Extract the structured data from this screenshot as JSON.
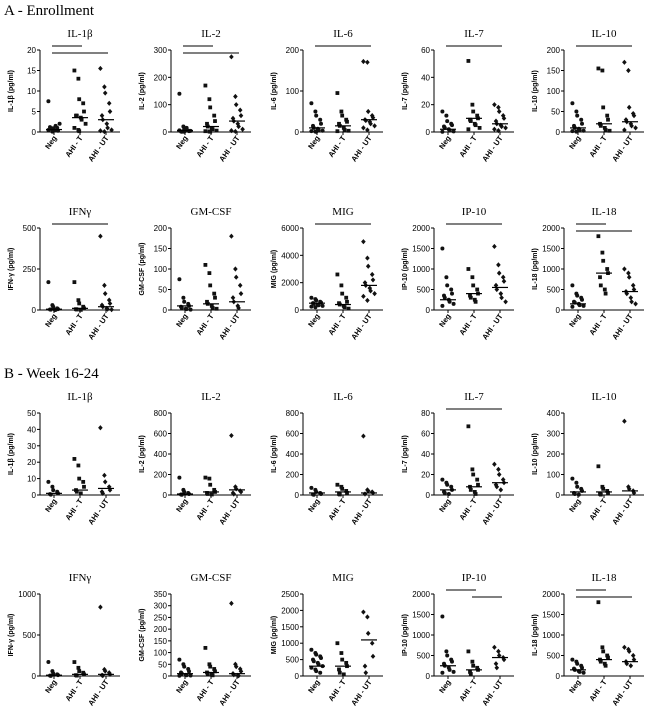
{
  "sections": [
    {
      "title": "A - Enrollment"
    },
    {
      "title": "B - Week 16-24"
    }
  ],
  "chart_data": [
    {
      "type": "scatter",
      "section": 0,
      "title": "IL-1β",
      "ylabel": "IL-1β (pg/ml)",
      "categories": [
        "Neg",
        "AHI - T",
        "AHI - UT"
      ],
      "ylim": [
        0,
        20
      ],
      "yticks": [
        0,
        5,
        10,
        15,
        20
      ],
      "brackets": [
        [
          0,
          1
        ],
        [
          0,
          2
        ]
      ],
      "points": [
        [
          0.5,
          0.2,
          0.6,
          1,
          0.3,
          1.2,
          0.8,
          0.4,
          1.5,
          2,
          7.5,
          0.1,
          0.9
        ],
        [
          15,
          13,
          8,
          7,
          5,
          4,
          4,
          3.5,
          3,
          2,
          1,
          0.5,
          0.2
        ],
        [
          15.5,
          11,
          9.5,
          7,
          5,
          4,
          3,
          2,
          1,
          0.5,
          0.3,
          0.1
        ]
      ],
      "medians": [
        0.6,
        3.5,
        3
      ]
    },
    {
      "type": "scatter",
      "section": 0,
      "title": "IL-2",
      "ylabel": "IL-2 (pg/ml)",
      "categories": [
        "Neg",
        "AHI - T",
        "AHI - UT"
      ],
      "ylim": [
        0,
        300
      ],
      "yticks": [
        0,
        100,
        200,
        300
      ],
      "brackets": [
        [
          0,
          1
        ],
        [
          0,
          2
        ]
      ],
      "points": [
        [
          140,
          20,
          10,
          5,
          3,
          2,
          1,
          8,
          15,
          4,
          6,
          2,
          1
        ],
        [
          170,
          120,
          90,
          60,
          40,
          30,
          20,
          15,
          10,
          5,
          3,
          2,
          1
        ],
        [
          275,
          130,
          100,
          80,
          60,
          50,
          40,
          30,
          20,
          10,
          5,
          2
        ]
      ],
      "medians": [
        5,
        20,
        40
      ]
    },
    {
      "type": "scatter",
      "section": 0,
      "title": "IL-6",
      "ylabel": "IL-6 (pg/ml)",
      "categories": [
        "Neg",
        "AHI - T",
        "AHI - UT"
      ],
      "ylim": [
        0,
        200
      ],
      "yticks": [
        0,
        100,
        200
      ],
      "brackets": [
        [
          0,
          2
        ]
      ],
      "points": [
        [
          70,
          50,
          40,
          30,
          20,
          15,
          10,
          8,
          5,
          3,
          2,
          1,
          0.5
        ],
        [
          95,
          50,
          40,
          30,
          25,
          20,
          15,
          10,
          5,
          3,
          2
        ],
        [
          172,
          170,
          50,
          40,
          35,
          30,
          28,
          25,
          20,
          15,
          10,
          5
        ]
      ],
      "medians": [
        10,
        15,
        30
      ]
    },
    {
      "type": "scatter",
      "section": 0,
      "title": "IL-7",
      "ylabel": "IL-7 (pg/ml)",
      "categories": [
        "Neg",
        "AHI - T",
        "AHI - UT"
      ],
      "ylim": [
        0,
        60
      ],
      "yticks": [
        0,
        20,
        40,
        60
      ],
      "brackets": [
        [
          0,
          2
        ]
      ],
      "points": [
        [
          15,
          12,
          8,
          6,
          5,
          4,
          3,
          2,
          1,
          0.5,
          0.2
        ],
        [
          52,
          20,
          15,
          12,
          10,
          9,
          8,
          6,
          5,
          3,
          2
        ],
        [
          20,
          18,
          15,
          12,
          10,
          8,
          6,
          5,
          4,
          3,
          2,
          1
        ]
      ],
      "medians": [
        2,
        10,
        6
      ]
    },
    {
      "type": "scatter",
      "section": 0,
      "title": "IL-10",
      "ylabel": "IL-10 (pg/ml)",
      "categories": [
        "Neg",
        "AHI - T",
        "AHI - UT"
      ],
      "ylim": [
        0,
        200
      ],
      "yticks": [
        0,
        50,
        100,
        150,
        200
      ],
      "brackets": [
        [
          0,
          2
        ]
      ],
      "points": [
        [
          70,
          50,
          40,
          30,
          20,
          15,
          10,
          8,
          5,
          3,
          2,
          1
        ],
        [
          155,
          150,
          60,
          40,
          30,
          20,
          15,
          10,
          5,
          3
        ],
        [
          170,
          150,
          60,
          45,
          40,
          30,
          25,
          20,
          15,
          10,
          5
        ]
      ],
      "medians": [
        10,
        20,
        25
      ]
    },
    {
      "type": "scatter",
      "section": 0,
      "title": "IFNγ",
      "ylabel": "IFN-γ (pg/ml)",
      "categories": [
        "Neg",
        "AHI - T",
        "AHI - UT"
      ],
      "ylim": [
        0,
        500
      ],
      "yticks": [
        0,
        250,
        500
      ],
      "brackets": [
        [
          0,
          2
        ]
      ],
      "points": [
        [
          170,
          30,
          20,
          10,
          5,
          3,
          2,
          1,
          0.5
        ],
        [
          170,
          60,
          40,
          20,
          10,
          5,
          3,
          1
        ],
        [
          450,
          150,
          100,
          60,
          40,
          30,
          20,
          10,
          5,
          2
        ]
      ],
      "medians": [
        5,
        10,
        20
      ]
    },
    {
      "type": "scatter",
      "section": 0,
      "title": "GM-CSF",
      "ylabel": "GM-CSF (pg/ml)",
      "categories": [
        "Neg",
        "AHI - T",
        "AHI - UT"
      ],
      "ylim": [
        0,
        200
      ],
      "yticks": [
        0,
        50,
        100,
        150,
        200
      ],
      "brackets": [],
      "points": [
        [
          75,
          30,
          20,
          15,
          10,
          8,
          5,
          3,
          2,
          1
        ],
        [
          110,
          90,
          60,
          40,
          30,
          20,
          15,
          10,
          5,
          3
        ],
        [
          180,
          100,
          80,
          60,
          40,
          30,
          20,
          10,
          5
        ]
      ],
      "medians": [
        10,
        15,
        20
      ]
    },
    {
      "type": "scatter",
      "section": 0,
      "title": "MIG",
      "ylabel": "MIG (pg/ml)",
      "categories": [
        "Neg",
        "AHI - T",
        "AHI - UT"
      ],
      "ylim": [
        0,
        6000
      ],
      "yticks": [
        0,
        2000,
        4000,
        6000
      ],
      "brackets": [
        [
          0,
          2
        ]
      ],
      "points": [
        [
          900,
          800,
          700,
          600,
          550,
          500,
          450,
          400,
          350,
          300,
          250,
          200
        ],
        [
          2600,
          1800,
          1200,
          900,
          600,
          500,
          400,
          300,
          200,
          100
        ],
        [
          5000,
          3800,
          3200,
          2600,
          2200,
          2000,
          1800,
          1600,
          1400,
          1200,
          1000,
          700
        ]
      ],
      "medians": [
        500,
        400,
        1800
      ]
    },
    {
      "type": "scatter",
      "section": 0,
      "title": "IP-10",
      "ylabel": "IP-10 (pg/ml)",
      "categories": [
        "Neg",
        "AHI - T",
        "AHI - UT"
      ],
      "ylim": [
        0,
        2000
      ],
      "yticks": [
        0,
        500,
        1000,
        1500,
        2000
      ],
      "brackets": [
        [
          0,
          2
        ]
      ],
      "points": [
        [
          1500,
          800,
          600,
          500,
          400,
          350,
          300,
          250,
          200,
          150,
          100
        ],
        [
          1000,
          800,
          600,
          500,
          400,
          350,
          300,
          250,
          200
        ],
        [
          1550,
          1100,
          900,
          800,
          700,
          600,
          500,
          400,
          300,
          200
        ]
      ],
      "medians": [
        250,
        400,
        550
      ]
    },
    {
      "type": "scatter",
      "section": 0,
      "title": "IL-18",
      "ylabel": "IL-18 (pg/ml)",
      "categories": [
        "Neg",
        "AHI - T",
        "AHI - UT"
      ],
      "ylim": [
        0,
        2000
      ],
      "yticks": [
        0,
        500,
        1000,
        1500,
        2000
      ],
      "brackets": [
        [
          0,
          1
        ],
        [
          0,
          2
        ]
      ],
      "points": [
        [
          600,
          400,
          350,
          300,
          250,
          200,
          180,
          150,
          120,
          100,
          80
        ],
        [
          1800,
          1400,
          1200,
          1000,
          900,
          800,
          600,
          500,
          400
        ],
        [
          1000,
          900,
          800,
          600,
          500,
          450,
          400,
          300,
          200,
          150
        ]
      ],
      "medians": [
        150,
        900,
        450
      ]
    },
    {
      "type": "scatter",
      "section": 1,
      "title": "IL-1β",
      "ylabel": "IL-1β (pg/ml)",
      "categories": [
        "Neg",
        "AHI - T",
        "AHI - UT"
      ],
      "ylim": [
        0,
        50
      ],
      "yticks": [
        0,
        10,
        20,
        30,
        40,
        50
      ],
      "brackets": [],
      "points": [
        [
          8,
          5,
          3,
          2,
          1,
          0.5,
          0.2
        ],
        [
          22,
          18,
          10,
          8,
          5,
          3,
          2,
          1
        ],
        [
          41,
          12,
          8,
          5,
          3,
          2,
          1
        ]
      ],
      "medians": [
        1,
        3,
        4
      ]
    },
    {
      "type": "scatter",
      "section": 1,
      "title": "IL-2",
      "ylabel": "IL-2 (pg/ml)",
      "categories": [
        "Neg",
        "AHI - T",
        "AHI - UT"
      ],
      "ylim": [
        0,
        800
      ],
      "yticks": [
        0,
        200,
        400,
        600,
        800
      ],
      "brackets": [],
      "points": [
        [
          170,
          50,
          30,
          20,
          10,
          5,
          2
        ],
        [
          170,
          160,
          100,
          50,
          30,
          20,
          10,
          5
        ],
        [
          580,
          80,
          60,
          40,
          30,
          20,
          10
        ]
      ],
      "medians": [
        10,
        30,
        50
      ]
    },
    {
      "type": "scatter",
      "section": 1,
      "title": "IL-6",
      "ylabel": "IL-6 (pg/ml)",
      "categories": [
        "Neg",
        "AHI - T",
        "AHI - UT"
      ],
      "ylim": [
        0,
        800
      ],
      "yticks": [
        0,
        200,
        400,
        600,
        800
      ],
      "brackets": [],
      "points": [
        [
          70,
          50,
          30,
          20,
          10,
          5,
          2
        ],
        [
          100,
          80,
          60,
          40,
          20,
          10,
          5
        ],
        [
          575,
          50,
          40,
          30,
          20,
          10
        ]
      ],
      "medians": [
        20,
        30,
        20
      ]
    },
    {
      "type": "scatter",
      "section": 1,
      "title": "IL-7",
      "ylabel": "IL-7 (pg/ml)",
      "categories": [
        "Neg",
        "AHI - T",
        "AHI - UT"
      ],
      "ylim": [
        0,
        80
      ],
      "yticks": [
        0,
        20,
        40,
        60,
        80
      ],
      "brackets": [
        [
          0,
          2
        ]
      ],
      "points": [
        [
          15,
          12,
          10,
          8,
          5,
          3,
          2,
          1
        ],
        [
          67,
          25,
          20,
          15,
          10,
          8,
          5,
          3,
          1
        ],
        [
          30,
          25,
          20,
          15,
          12,
          10,
          8,
          5
        ]
      ],
      "medians": [
        5,
        8,
        12
      ]
    },
    {
      "type": "scatter",
      "section": 1,
      "title": "IL-10",
      "ylabel": "IL-10 (pg/ml)",
      "categories": [
        "Neg",
        "AHI - T",
        "AHI - UT"
      ],
      "ylim": [
        0,
        400
      ],
      "yticks": [
        0,
        100,
        200,
        300,
        400
      ],
      "brackets": [],
      "points": [
        [
          80,
          60,
          40,
          30,
          20,
          10,
          5,
          2
        ],
        [
          140,
          40,
          30,
          20,
          10,
          5,
          2
        ],
        [
          360,
          40,
          30,
          20,
          10
        ]
      ],
      "medians": [
        15,
        15,
        20
      ]
    },
    {
      "type": "scatter",
      "section": 1,
      "title": "IFNγ",
      "ylabel": "IFN-γ (pg/ml)",
      "categories": [
        "Neg",
        "AHI - T",
        "AHI - UT"
      ],
      "ylim": [
        0,
        1000
      ],
      "yticks": [
        0,
        500,
        1000
      ],
      "brackets": [],
      "points": [
        [
          170,
          60,
          30,
          20,
          10,
          5,
          2
        ],
        [
          170,
          100,
          60,
          40,
          20,
          10,
          5
        ],
        [
          840,
          80,
          60,
          40,
          20,
          10,
          5
        ]
      ],
      "medians": [
        10,
        20,
        20
      ]
    },
    {
      "type": "scatter",
      "section": 1,
      "title": "GM-CSF",
      "ylabel": "GM-CSF (pg/ml)",
      "categories": [
        "Neg",
        "AHI - T",
        "AHI - UT"
      ],
      "ylim": [
        0,
        350
      ],
      "yticks": [
        0,
        50,
        100,
        150,
        200,
        250,
        300,
        350
      ],
      "brackets": [],
      "points": [
        [
          70,
          50,
          40,
          30,
          20,
          15,
          10,
          5,
          3,
          2,
          1
        ],
        [
          120,
          50,
          40,
          30,
          20,
          15,
          10,
          5,
          3
        ],
        [
          310,
          50,
          40,
          30,
          20,
          10,
          5,
          3,
          1
        ]
      ],
      "medians": [
        10,
        15,
        10
      ]
    },
    {
      "type": "scatter",
      "section": 1,
      "title": "MIG",
      "ylabel": "MIG (pg/ml)",
      "categories": [
        "Neg",
        "AHI - T",
        "AHI - UT"
      ],
      "ylim": [
        0,
        2500
      ],
      "yticks": [
        0,
        500,
        1000,
        1500,
        2000,
        2500
      ],
      "brackets": [],
      "points": [
        [
          800,
          700,
          650,
          600,
          550,
          500,
          450,
          400,
          350,
          300,
          250,
          200,
          150,
          100
        ],
        [
          1000,
          700,
          500,
          400,
          300,
          200,
          100,
          50
        ],
        [
          1950,
          1800,
          1300,
          1000,
          600,
          300,
          100
        ]
      ],
      "medians": [
        300,
        300,
        1100
      ]
    },
    {
      "type": "scatter",
      "section": 1,
      "title": "IP-10",
      "ylabel": "IP-10 (pg/ml)",
      "categories": [
        "Neg",
        "AHI - T",
        "AHI - UT"
      ],
      "ylim": [
        0,
        2000
      ],
      "yticks": [
        0,
        500,
        1000,
        1500,
        2000
      ],
      "brackets": [
        [
          0,
          1
        ],
        [
          1,
          2
        ]
      ],
      "points": [
        [
          1450,
          600,
          500,
          400,
          350,
          300,
          250,
          200,
          150,
          100,
          80
        ],
        [
          600,
          350,
          250,
          200,
          150,
          100,
          50
        ],
        [
          700,
          600,
          500,
          450,
          400,
          300,
          200
        ]
      ],
      "medians": [
        250,
        150,
        450
      ]
    },
    {
      "type": "scatter",
      "section": 1,
      "title": "IL-18",
      "ylabel": "IL-18 (pg/ml)",
      "categories": [
        "Neg",
        "AHI - T",
        "AHI - UT"
      ],
      "ylim": [
        0,
        2000
      ],
      "yticks": [
        0,
        500,
        1000,
        1500,
        2000
      ],
      "brackets": [
        [
          0,
          1
        ],
        [
          0,
          2
        ]
      ],
      "points": [
        [
          400,
          350,
          300,
          250,
          200,
          180,
          150,
          120,
          100,
          80
        ],
        [
          1800,
          700,
          600,
          500,
          450,
          400,
          350,
          300,
          250
        ],
        [
          700,
          650,
          600,
          500,
          400,
          350,
          300,
          250
        ]
      ],
      "medians": [
        150,
        400,
        350
      ]
    }
  ]
}
